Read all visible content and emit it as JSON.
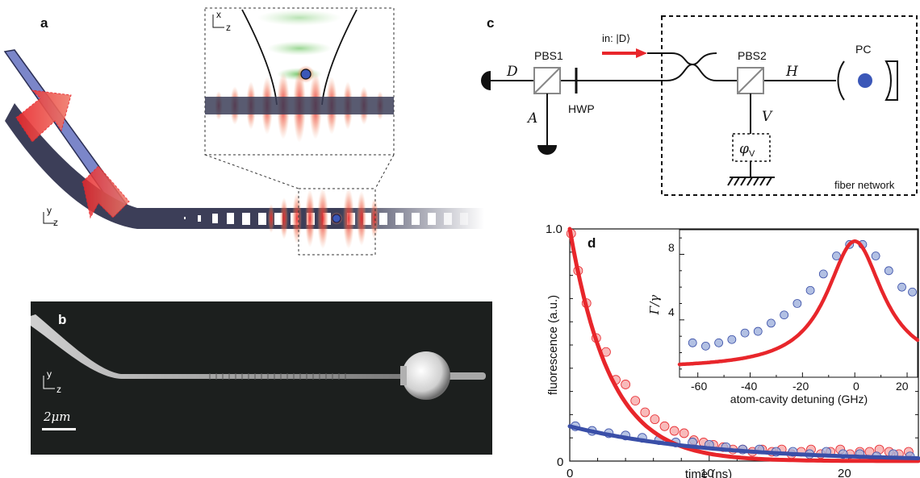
{
  "panel_labels": {
    "a": "a",
    "b": "b",
    "c": "c",
    "d": "d"
  },
  "panel_a": {
    "inset_axis": {
      "x": "x",
      "z": "z"
    },
    "axis": {
      "y": "y",
      "z": "z"
    }
  },
  "panel_b": {
    "axis": {
      "y": "y",
      "z": "z"
    },
    "scale_bar": "2μm"
  },
  "panel_c": {
    "input_label": "in: |D⟩",
    "pbs1": "PBS1",
    "pbs2": "PBS2",
    "hwp": "HWP",
    "pc": "PC",
    "port_D": "D",
    "port_A": "A",
    "port_H": "H",
    "port_V": "V",
    "phase": "φ",
    "phase_sub": "V",
    "network": "fiber network"
  },
  "chart_data": [
    {
      "type": "scatter",
      "panel": "d",
      "xlabel": "time (ns)",
      "ylabel": "fluorescence (a.u.)",
      "xlim": [
        0,
        25
      ],
      "ylim": [
        0,
        1
      ],
      "xticks": [
        "0",
        "10",
        "20"
      ],
      "yticks": [
        "0",
        "1.0"
      ],
      "colors": {
        "red": "#e8262b",
        "blue": "#3a4fa8",
        "red_fill": "#f5a3a3",
        "blue_fill": "#9fb0dc"
      },
      "series": [
        {
          "color": "red",
          "fit": {
            "model": "exp",
            "amp": 1.0,
            "tau": 2.9
          },
          "x": [
            0.1,
            0.6,
            1.2,
            1.9,
            2.6,
            3.3,
            4.0,
            4.7,
            5.4,
            6.1,
            6.8,
            7.5,
            8.2,
            8.9,
            9.6,
            10.3,
            11.0,
            11.7,
            12.4,
            13.1,
            13.8,
            14.5,
            15.2,
            15.9,
            16.6,
            17.3,
            18.0,
            18.7,
            19.4,
            20.1,
            20.8,
            21.5,
            22.2,
            22.9,
            23.6,
            24.3
          ],
          "y": [
            0.98,
            0.82,
            0.68,
            0.53,
            0.47,
            0.35,
            0.33,
            0.26,
            0.21,
            0.18,
            0.15,
            0.13,
            0.12,
            0.09,
            0.08,
            0.07,
            0.06,
            0.05,
            0.05,
            0.04,
            0.05,
            0.04,
            0.05,
            0.03,
            0.04,
            0.05,
            0.03,
            0.04,
            0.05,
            0.03,
            0.04,
            0.04,
            0.05,
            0.04,
            0.03,
            0.04
          ]
        },
        {
          "color": "blue",
          "fit": {
            "model": "exp",
            "amp": 0.15,
            "tau": 10.0
          },
          "x": [
            0.4,
            1.6,
            2.8,
            4.0,
            5.2,
            6.4,
            7.6,
            8.8,
            10.0,
            11.2,
            12.4,
            13.6,
            14.8,
            16.0,
            17.2,
            18.4,
            19.6,
            20.8,
            22.0,
            23.2,
            24.4
          ],
          "y": [
            0.15,
            0.13,
            0.12,
            0.11,
            0.1,
            0.09,
            0.08,
            0.08,
            0.07,
            0.06,
            0.05,
            0.05,
            0.04,
            0.04,
            0.03,
            0.04,
            0.03,
            0.03,
            0.02,
            0.03,
            0.02
          ]
        }
      ]
    },
    {
      "type": "scatter",
      "panel": "d-inset",
      "xlabel": "atom-cavity detuning (GHz)",
      "ylabel": "Γ/γ",
      "xlim": [
        -67,
        24
      ],
      "ylim": [
        0.5,
        9.5
      ],
      "xticks": [
        "-60",
        "-40",
        "-20",
        "0",
        "20"
      ],
      "yticks": [
        "4",
        "8"
      ],
      "series": [
        {
          "color": "blue",
          "fit": {
            "model": "lorentzian",
            "base": 1.0,
            "amp": 7.8,
            "center": 0,
            "hwhm": 13
          },
          "x": [
            -62,
            -57,
            -52,
            -47,
            -42,
            -37,
            -32,
            -27,
            -22,
            -17,
            -12,
            -7,
            -2,
            3,
            8,
            13,
            18,
            22
          ],
          "y": [
            2.6,
            2.4,
            2.6,
            2.8,
            3.2,
            3.3,
            3.8,
            4.3,
            5.0,
            5.8,
            6.8,
            7.9,
            8.6,
            8.6,
            7.9,
            7.0,
            6.0,
            5.7
          ]
        }
      ]
    }
  ]
}
